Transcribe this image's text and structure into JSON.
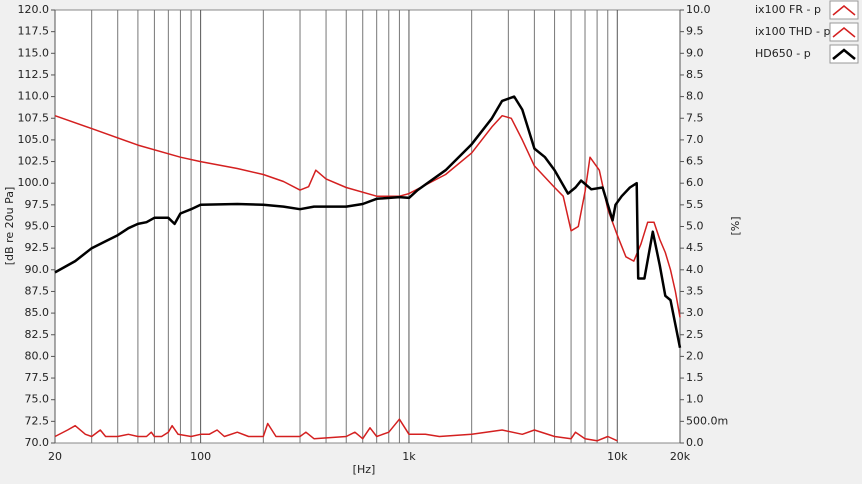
{
  "chart_data": {
    "type": "line",
    "xscale": "log",
    "x_label": "[Hz]",
    "y_label": "[dB re 20u Pa]",
    "y2_label": "[%]",
    "xlim": [
      20,
      20000
    ],
    "xticks": [
      20,
      100,
      {
        "value": 1000,
        "label": "1k"
      },
      {
        "value": 10000,
        "label": "10k"
      },
      {
        "value": 20000,
        "label": "20k"
      }
    ],
    "x_minor_ticks": [
      30,
      40,
      50,
      60,
      70,
      80,
      90,
      200,
      300,
      400,
      500,
      600,
      700,
      800,
      900,
      2000,
      3000,
      4000,
      5000,
      6000,
      7000,
      8000,
      9000
    ],
    "ylim": [
      70,
      120
    ],
    "yticks": [
      {
        "value": 70,
        "label": "70.0"
      },
      {
        "value": 72.5,
        "label": "72.5"
      },
      {
        "value": 75,
        "label": "75.0"
      },
      {
        "value": 77.5,
        "label": "77.5"
      },
      {
        "value": 80,
        "label": "80.0"
      },
      {
        "value": 82.5,
        "label": "82.5"
      },
      {
        "value": 85,
        "label": "85.0"
      },
      {
        "value": 87.5,
        "label": "87.5"
      },
      {
        "value": 90,
        "label": "90.0"
      },
      {
        "value": 92.5,
        "label": "92.5"
      },
      {
        "value": 95,
        "label": "95.0"
      },
      {
        "value": 97.5,
        "label": "97.5"
      },
      {
        "value": 100,
        "label": "100.0"
      },
      {
        "value": 102.5,
        "label": "102.5"
      },
      {
        "value": 105,
        "label": "105.0"
      },
      {
        "value": 107.5,
        "label": "107.5"
      },
      {
        "value": 110,
        "label": "110.0"
      },
      {
        "value": 112.5,
        "label": "112.5"
      },
      {
        "value": 115,
        "label": "115.0"
      },
      {
        "value": 117.5,
        "label": "117.5"
      },
      {
        "value": 120,
        "label": "120.0"
      }
    ],
    "y2lim": [
      0,
      10
    ],
    "y2ticks": [
      {
        "value": 0,
        "label": "0.0"
      },
      {
        "value": 0.5,
        "label": "500.0m"
      },
      {
        "value": 1,
        "label": "1.0"
      },
      {
        "value": 1.5,
        "label": "1.5"
      },
      {
        "value": 2,
        "label": "2.0"
      },
      {
        "value": 2.5,
        "label": "2.5"
      },
      {
        "value": 3,
        "label": "3.0"
      },
      {
        "value": 3.5,
        "label": "3.5"
      },
      {
        "value": 4,
        "label": "4.0"
      },
      {
        "value": 4.5,
        "label": "4.5"
      },
      {
        "value": 5,
        "label": "5.0"
      },
      {
        "value": 5.5,
        "label": "5.5"
      },
      {
        "value": 6,
        "label": "6.0"
      },
      {
        "value": 6.5,
        "label": "6.5"
      },
      {
        "value": 7,
        "label": "7.0"
      },
      {
        "value": 7.5,
        "label": "7.5"
      },
      {
        "value": 8,
        "label": "8.0"
      },
      {
        "value": 8.5,
        "label": "8.5"
      },
      {
        "value": 9,
        "label": "9.0"
      },
      {
        "value": 9.5,
        "label": "9.5"
      },
      {
        "value": 10,
        "label": "10.0"
      }
    ],
    "series": [
      {
        "name": "ix100 FR - p",
        "color": "#d42020",
        "width": 1.5,
        "x": [
          20,
          30,
          50,
          80,
          100,
          150,
          200,
          250,
          300,
          330,
          357,
          400,
          500,
          700,
          900,
          1000,
          1500,
          2000,
          2500,
          2800,
          3100,
          3500,
          4000,
          5000,
          5500,
          6000,
          6500,
          7000,
          7400,
          8200,
          9000,
          10000,
          11000,
          12000,
          13000,
          14000,
          15000,
          16000,
          17000,
          18000,
          19000,
          20000
        ],
        "values": [
          107.8,
          106.3,
          104.4,
          103,
          102.5,
          101.7,
          101,
          100.2,
          99.2,
          99.6,
          101.5,
          100.5,
          99.5,
          98.5,
          98.5,
          98.8,
          101,
          103.5,
          106.5,
          107.8,
          107.5,
          105,
          102,
          99.5,
          98.5,
          94.5,
          95,
          99,
          103,
          101.5,
          97,
          94,
          91.5,
          91,
          93,
          95.5,
          95.5,
          93.5,
          92,
          90,
          87.5,
          84.5
        ]
      },
      {
        "name": "ix100 THD - p",
        "color": "#d42020",
        "width": 1.5,
        "axis": "y2",
        "x": [
          20,
          23,
          25,
          28,
          30,
          33,
          35,
          40,
          45,
          50,
          55,
          58,
          60,
          65,
          70,
          73,
          78,
          90,
          100,
          110,
          120,
          130,
          150,
          170,
          200,
          210,
          230,
          300,
          320,
          350,
          500,
          550,
          600,
          650,
          700,
          800,
          900,
          1000,
          1200,
          1400,
          2000,
          2800,
          3500,
          4000,
          5000,
          6000,
          6300,
          7000,
          8000,
          9000,
          10000
        ],
        "values": [
          0.15,
          0.3,
          0.4,
          0.2,
          0.15,
          0.3,
          0.15,
          0.15,
          0.2,
          0.15,
          0.15,
          0.25,
          0.15,
          0.15,
          0.25,
          0.4,
          0.2,
          0.15,
          0.2,
          0.2,
          0.3,
          0.15,
          0.25,
          0.15,
          0.15,
          0.45,
          0.15,
          0.15,
          0.25,
          0.1,
          0.15,
          0.25,
          0.1,
          0.35,
          0.15,
          0.25,
          0.55,
          0.2,
          0.2,
          0.15,
          0.2,
          0.3,
          0.2,
          0.3,
          0.15,
          0.1,
          0.25,
          0.1,
          0.05,
          0.15,
          0.05
        ]
      },
      {
        "name": "HD650 - p",
        "color": "#000000",
        "width": 2.5,
        "x": [
          20,
          25,
          30,
          35,
          40,
          45,
          50,
          55,
          60,
          70,
          75,
          80,
          90,
          100,
          150,
          200,
          250,
          300,
          350,
          500,
          600,
          700,
          900,
          1000,
          1100,
          1500,
          2000,
          2500,
          2800,
          3200,
          3500,
          4000,
          4500,
          5000,
          5800,
          6300,
          6700,
          7500,
          8500,
          9500,
          9800,
          10500,
          11500,
          12400,
          12600,
          13500,
          14800,
          16000,
          17000,
          18000,
          20000
        ],
        "values": [
          89.7,
          91,
          92.5,
          93.3,
          94,
          94.8,
          95.3,
          95.5,
          96,
          96,
          95.3,
          96.5,
          97,
          97.5,
          97.6,
          97.5,
          97.3,
          97,
          97.3,
          97.3,
          97.6,
          98.2,
          98.4,
          98.3,
          99.2,
          101.5,
          104.5,
          107.5,
          109.5,
          110,
          108.5,
          104,
          103,
          101.5,
          98.8,
          99.5,
          100.3,
          99.3,
          99.5,
          95.7,
          97.5,
          98.5,
          99.5,
          100,
          89,
          89,
          94.4,
          90.5,
          87,
          86.5,
          81
        ]
      }
    ]
  }
}
